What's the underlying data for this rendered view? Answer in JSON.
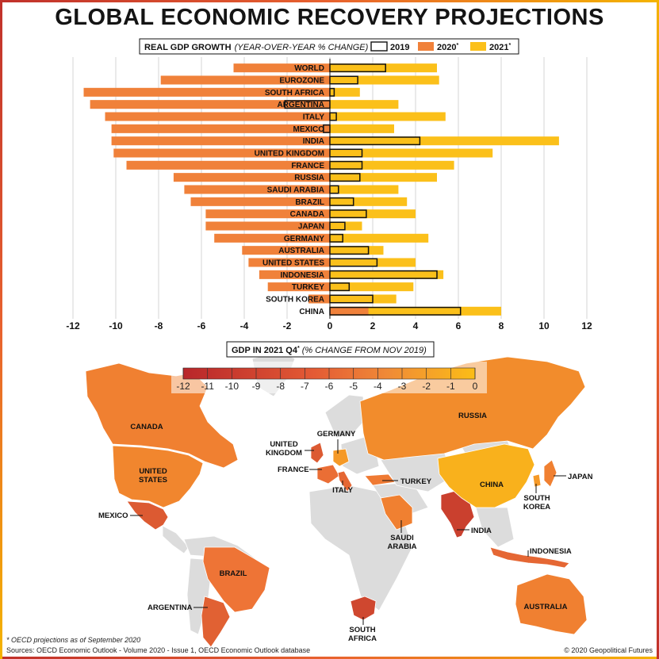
{
  "title": "GLOBAL ECONOMIC RECOVERY PROJECTIONS",
  "colors": {
    "y2019_border": "#111111",
    "y2020": "#f0813a",
    "y2021": "#fbc01a",
    "land_default": "#dcdcdc",
    "scale_low": "#b8262a",
    "scale_mid": "#ee7436",
    "scale_high": "#fbbd17"
  },
  "chart_data": [
    {
      "type": "bar",
      "orientation": "horizontal",
      "title": "REAL GDP GROWTH",
      "subtitle": "(YEAR-OVER-YEAR % CHANGE)",
      "legend": {
        "position": "top",
        "entries": [
          {
            "key": "y2019",
            "label": "2019",
            "sup": ""
          },
          {
            "key": "y2020",
            "label": "2020",
            "sup": "*"
          },
          {
            "key": "y2021",
            "label": "2021",
            "sup": "*"
          }
        ]
      },
      "xlim": [
        -12,
        12
      ],
      "xticks": [
        -12,
        -10,
        -8,
        -6,
        -4,
        -2,
        0,
        2,
        4,
        6,
        8,
        10,
        12
      ],
      "grid": true,
      "categories": [
        "WORLD",
        "EUROZONE",
        "SOUTH AFRICA",
        "ARGENTINA",
        "ITALY",
        "MEXICO",
        "INDIA",
        "UNITED KINGDOM",
        "FRANCE",
        "RUSSIA",
        "SAUDI ARABIA",
        "BRAZIL",
        "CANADA",
        "JAPAN",
        "GERMANY",
        "AUSTRALIA",
        "UNITED STATES",
        "INDONESIA",
        "TURKEY",
        "SOUTH KOREA",
        "CHINA"
      ],
      "series": [
        {
          "name": "2019",
          "key": "y2019",
          "values": [
            2.6,
            1.3,
            0.2,
            -2.1,
            0.3,
            -0.3,
            4.2,
            1.5,
            1.5,
            1.4,
            0.4,
            1.1,
            1.7,
            0.7,
            0.6,
            1.8,
            2.2,
            5.0,
            0.9,
            2.0,
            6.1
          ]
        },
        {
          "name": "2020",
          "key": "y2020",
          "values": [
            -4.5,
            -7.9,
            -11.5,
            -11.2,
            -10.5,
            -10.2,
            -10.2,
            -10.1,
            -9.5,
            -7.3,
            -6.8,
            -6.5,
            -5.8,
            -5.8,
            -5.4,
            -4.1,
            -3.8,
            -3.3,
            -2.9,
            -1.0,
            1.8
          ]
        },
        {
          "name": "2021",
          "key": "y2021",
          "values": [
            5.0,
            5.1,
            1.4,
            3.2,
            5.4,
            3.0,
            10.7,
            7.6,
            5.8,
            5.0,
            3.2,
            3.6,
            4.0,
            1.5,
            4.6,
            2.5,
            4.0,
            5.3,
            3.9,
            3.1,
            8.0
          ]
        }
      ]
    },
    {
      "type": "choropleth",
      "title": "GDP IN 2021 Q4",
      "title_sup": "*",
      "subtitle": "(% CHANGE FROM NOV 2019)",
      "scale_ticks": [
        -12,
        -11,
        -10,
        -9,
        -8,
        -7,
        -6,
        -5,
        -4,
        -3,
        -2,
        -1,
        0
      ],
      "scale_range": [
        -12,
        0
      ],
      "regions": [
        {
          "label": "CANADA",
          "value": -5
        },
        {
          "label": "UNITED STATES",
          "value": -4.5
        },
        {
          "label": "MEXICO",
          "value": -8
        },
        {
          "label": "BRAZIL",
          "value": -6
        },
        {
          "label": "ARGENTINA",
          "value": -7.5
        },
        {
          "label": "UNITED KINGDOM",
          "value": -8
        },
        {
          "label": "FRANCE",
          "value": -6.5
        },
        {
          "label": "GERMANY",
          "value": -3
        },
        {
          "label": "ITALY",
          "value": -7
        },
        {
          "label": "TURKEY",
          "value": -5.5
        },
        {
          "label": "SAUDI ARABIA",
          "value": -5
        },
        {
          "label": "RUSSIA",
          "value": -4
        },
        {
          "label": "INDIA",
          "value": -10
        },
        {
          "label": "CHINA",
          "value": -1
        },
        {
          "label": "JAPAN",
          "value": -5
        },
        {
          "label": "SOUTH KOREA",
          "value": -3
        },
        {
          "label": "INDONESIA",
          "value": -7
        },
        {
          "label": "AUSTRALIA",
          "value": -5
        },
        {
          "label": "SOUTH AFRICA",
          "value": -9.5
        }
      ]
    }
  ],
  "footer": {
    "note": "* OECD projections as of September 2020",
    "sources": "Sources: OECD Economic Outlook - Volume 2020 - Issue 1, OECD Economic Outlook database",
    "copyright": "© 2020 Geopolitical Futures"
  }
}
